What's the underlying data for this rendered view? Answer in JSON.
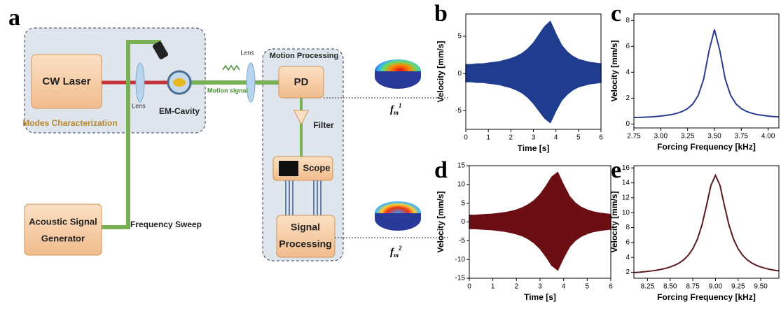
{
  "diagram": {
    "panel": "a",
    "laser": "CW Laser",
    "modes": "Modes Characterization",
    "lens1": "Lens",
    "cavity": "EM-Cavity",
    "lens2": "Lens",
    "motion_signal": "Motion signal",
    "processing": "Motion Processing",
    "pd": "PD",
    "filter": "Filter",
    "scope": "Scope",
    "signal_processing": [
      "Signal",
      "Processing"
    ],
    "generator": [
      "Acoustic Signal",
      "Generator"
    ],
    "sweep": "Frequency Sweep",
    "mode1": {
      "base": "f",
      "sub": "m",
      "sup": "1"
    },
    "mode2": {
      "base": "f",
      "sub": "m",
      "sup": "2"
    }
  },
  "chart_data": [
    {
      "type": "band",
      "panel": "b",
      "xlabel": "Time [s]",
      "ylabel": "Velocity [mm/s]",
      "color": "#1f3c8f",
      "x": [
        0,
        0.25,
        0.5,
        0.75,
        1,
        1.25,
        1.5,
        1.75,
        2,
        2.25,
        2.5,
        2.75,
        3,
        3.25,
        3.5,
        3.75,
        4,
        4.25,
        4.5,
        4.75,
        5,
        5.25,
        5.5,
        5.75,
        6
      ],
      "high": [
        1.2,
        1.2,
        1.3,
        1.3,
        1.4,
        1.5,
        1.6,
        1.8,
        2.0,
        2.3,
        2.7,
        3.3,
        4.1,
        5.2,
        6.3,
        7.0,
        5.3,
        3.8,
        2.9,
        2.3,
        1.9,
        1.7,
        1.5,
        1.4,
        1.3
      ],
      "low": [
        -1.1,
        -1.1,
        -1.2,
        -1.2,
        -1.3,
        -1.4,
        -1.5,
        -1.7,
        -1.9,
        -2.2,
        -2.6,
        -3.2,
        -4.0,
        -5.0,
        -6.0,
        -6.6,
        -5.0,
        -3.6,
        -2.8,
        -2.2,
        -1.8,
        -1.6,
        -1.4,
        -1.3,
        -1.2
      ],
      "xlim": [
        0,
        6
      ],
      "ylim": [
        -7.5,
        8
      ],
      "xticks": [
        0,
        1,
        2,
        3,
        4,
        5,
        6
      ],
      "yticks": [
        -5,
        0,
        5
      ]
    },
    {
      "type": "line",
      "panel": "c",
      "xlabel": "Forcing Frequency [kHz]",
      "ylabel": "Velocity [mm/s]",
      "color": "#2a3d8f",
      "x": [
        2.75,
        2.8,
        2.85,
        2.9,
        2.95,
        3.0,
        3.05,
        3.1,
        3.15,
        3.2,
        3.25,
        3.3,
        3.35,
        3.4,
        3.45,
        3.5,
        3.55,
        3.6,
        3.65,
        3.7,
        3.75,
        3.8,
        3.85,
        3.9,
        3.95,
        4.0,
        4.05,
        4.1
      ],
      "values": [
        0.5,
        0.51,
        0.53,
        0.55,
        0.58,
        0.62,
        0.67,
        0.73,
        0.83,
        0.97,
        1.19,
        1.56,
        2.23,
        3.49,
        5.67,
        7.3,
        5.67,
        3.49,
        2.23,
        1.56,
        1.19,
        0.97,
        0.83,
        0.73,
        0.67,
        0.62,
        0.58,
        0.55
      ],
      "xlim": [
        2.75,
        4.1
      ],
      "ylim": [
        -0.3,
        8.5
      ],
      "xticks": [
        2.75,
        {
          "value": 3.0,
          "label": "3.00"
        },
        3.25,
        {
          "value": 3.5,
          "label": "3.50"
        },
        3.75,
        {
          "value": 4.0,
          "label": "4.00"
        }
      ],
      "yticks": [
        0,
        2,
        4,
        6,
        8
      ]
    },
    {
      "type": "band",
      "panel": "d",
      "xlabel": "Time [s]",
      "ylabel": "Velocity [mm/s]",
      "color": "#6b0f14",
      "x": [
        0,
        0.25,
        0.5,
        0.75,
        1,
        1.25,
        1.5,
        1.75,
        2,
        2.25,
        2.5,
        2.75,
        3,
        3.25,
        3.5,
        3.75,
        4,
        4.25,
        4.5,
        4.75,
        5,
        5.25,
        5.5,
        5.75,
        6
      ],
      "high": [
        1.8,
        1.8,
        1.9,
        2.0,
        2.1,
        2.3,
        2.5,
        2.8,
        3.2,
        3.8,
        4.6,
        5.7,
        7.3,
        9.5,
        12.0,
        13.2,
        9.8,
        6.8,
        5.0,
        3.9,
        3.2,
        2.7,
        2.4,
        2.2,
        2.0
      ],
      "low": [
        -1.8,
        -1.8,
        -1.9,
        -2.0,
        -2.1,
        -2.3,
        -2.5,
        -2.8,
        -3.2,
        -3.7,
        -4.5,
        -5.6,
        -7.1,
        -9.2,
        -11.6,
        -12.8,
        -9.5,
        -6.6,
        -4.9,
        -3.8,
        -3.1,
        -2.6,
        -2.3,
        -2.1,
        -1.9
      ],
      "xlim": [
        0,
        6
      ],
      "ylim": [
        -15,
        15
      ],
      "xticks": [
        0,
        1,
        2,
        3,
        4,
        5,
        6
      ],
      "yticks": [
        -15,
        -10,
        -5,
        0,
        5,
        10,
        15
      ]
    },
    {
      "type": "line",
      "panel": "e",
      "xlabel": "Forcing Frequency [kHz]",
      "ylabel": "Velocity [mm/s]",
      "color": "#5a1a1e",
      "x": [
        8.1,
        8.15,
        8.2,
        8.25,
        8.3,
        8.35,
        8.4,
        8.45,
        8.5,
        8.55,
        8.6,
        8.65,
        8.7,
        8.75,
        8.8,
        8.85,
        8.9,
        8.95,
        9.0,
        9.05,
        9.1,
        9.15,
        9.2,
        9.25,
        9.3,
        9.35,
        9.4,
        9.45,
        9.5,
        9.55,
        9.6,
        9.65,
        9.7
      ],
      "values": [
        1.96,
        2.0,
        2.06,
        2.12,
        2.19,
        2.28,
        2.39,
        2.53,
        2.71,
        2.94,
        3.25,
        3.68,
        4.28,
        5.15,
        6.42,
        8.3,
        10.88,
        13.66,
        15.0,
        13.66,
        10.88,
        8.3,
        6.42,
        5.15,
        4.28,
        3.68,
        3.25,
        2.94,
        2.71,
        2.53,
        2.39,
        2.28,
        2.19
      ],
      "xlim": [
        8.1,
        9.7
      ],
      "ylim": [
        1.2,
        16.3
      ],
      "xticks": [
        8.25,
        {
          "value": 8.5,
          "label": "8.50"
        },
        8.75,
        {
          "value": 9.0,
          "label": "9.00"
        },
        9.25,
        {
          "value": 9.5,
          "label": "9.50"
        }
      ],
      "yticks": [
        2,
        4,
        6,
        8,
        10,
        12,
        14,
        16
      ]
    }
  ]
}
